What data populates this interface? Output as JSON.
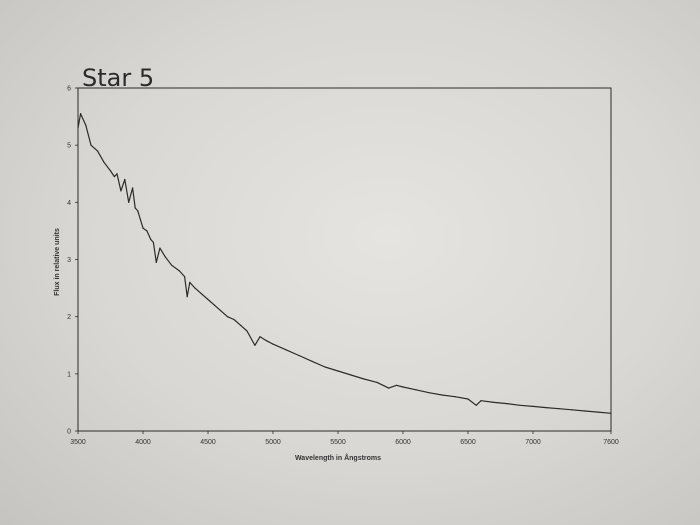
{
  "chart_data": {
    "type": "line",
    "title": "Star 5",
    "xlabel": "Wavelength in Ångstroms",
    "ylabel": "Flux in relative units",
    "xlim": [
      3500,
      7600
    ],
    "ylim": [
      0,
      6
    ],
    "x_ticks": [
      "3500",
      "4000",
      "4500",
      "5000",
      "5500",
      "6000",
      "6500",
      "7000",
      "7600"
    ],
    "y_ticks": [
      "0",
      "1",
      "2",
      "3",
      "4",
      "5",
      "6"
    ],
    "grid": false,
    "legend": "none",
    "line_color": "#2b2b2b",
    "series": [
      {
        "x": [
          3500,
          3520,
          3560,
          3600,
          3650,
          3700,
          3750,
          3780,
          3800,
          3830,
          3860,
          3890,
          3920,
          3940,
          3960,
          3980,
          4000,
          4030,
          4060,
          4080,
          4102,
          4130,
          4170,
          4220,
          4280,
          4320,
          4340,
          4360,
          4400,
          4450,
          4500,
          4550,
          4600,
          4650,
          4700,
          4750,
          4800,
          4861,
          4900,
          4950,
          5000,
          5100,
          5200,
          5300,
          5400,
          5500,
          5600,
          5700,
          5800,
          5890,
          5950,
          6000,
          6100,
          6200,
          6300,
          6400,
          6500,
          6563,
          6600,
          6700,
          6800,
          6900,
          7000,
          7100,
          7200,
          7300,
          7400,
          7500,
          7600
        ],
        "y": [
          5.3,
          5.55,
          5.35,
          5.0,
          4.9,
          4.7,
          4.55,
          4.45,
          4.5,
          4.2,
          4.4,
          4.0,
          4.25,
          3.9,
          3.85,
          3.7,
          3.55,
          3.5,
          3.35,
          3.3,
          2.95,
          3.2,
          3.05,
          2.9,
          2.8,
          2.7,
          2.35,
          2.6,
          2.5,
          2.4,
          2.3,
          2.2,
          2.1,
          2.0,
          1.95,
          1.85,
          1.75,
          1.5,
          1.65,
          1.58,
          1.52,
          1.42,
          1.32,
          1.22,
          1.12,
          1.05,
          0.98,
          0.91,
          0.85,
          0.75,
          0.8,
          0.77,
          0.72,
          0.67,
          0.63,
          0.6,
          0.56,
          0.45,
          0.53,
          0.5,
          0.48,
          0.45,
          0.43,
          0.41,
          0.39,
          0.37,
          0.35,
          0.33,
          0.31
        ]
      }
    ]
  }
}
